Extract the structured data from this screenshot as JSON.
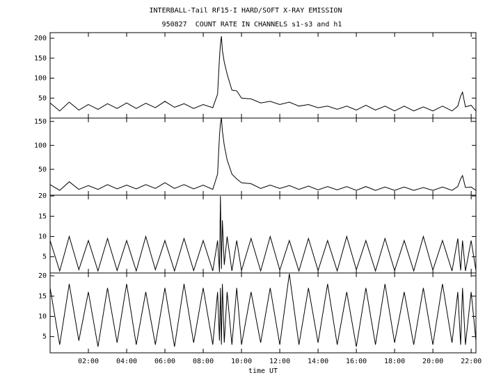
{
  "chart_data": [
    {
      "type": "line",
      "title": "INTERBALL-Tail RF15-I HARD/SOFT X-RAY EMISSION",
      "subtitle": "950827  COUNT RATE IN CHANNELS s1-s3 and h1",
      "color": "#000000",
      "xlim": [
        0,
        22.25
      ],
      "ylim": [
        0,
        214
      ],
      "yticks": [
        50,
        100,
        150,
        200
      ],
      "x": [
        0,
        0.5,
        1,
        1.5,
        2,
        2.5,
        3,
        3.5,
        4,
        4.5,
        5,
        5.5,
        6,
        6.5,
        7,
        7.5,
        8,
        8.5,
        8.75,
        8.85,
        8.9,
        8.95,
        9.0,
        9.1,
        9.25,
        9.5,
        9.75,
        10,
        10.5,
        11,
        11.5,
        12,
        12.5,
        13,
        13.5,
        14,
        14.5,
        15,
        15.5,
        16,
        16.5,
        17,
        17.5,
        18,
        18.5,
        19,
        19.5,
        20,
        20.5,
        21,
        21.3,
        21.45,
        21.55,
        21.7,
        22,
        22.25
      ],
      "values": [
        38,
        18,
        40,
        20,
        34,
        22,
        36,
        24,
        38,
        24,
        37,
        26,
        42,
        27,
        36,
        24,
        34,
        26,
        60,
        150,
        185,
        205,
        170,
        140,
        110,
        70,
        68,
        50,
        48,
        38,
        42,
        34,
        40,
        30,
        34,
        26,
        30,
        22,
        30,
        20,
        32,
        20,
        30,
        18,
        30,
        18,
        28,
        18,
        30,
        18,
        30,
        55,
        65,
        28,
        32,
        18
      ]
    },
    {
      "type": "line",
      "color": "#000000",
      "xlim": [
        0,
        22.25
      ],
      "ylim": [
        -4,
        157
      ],
      "yticks": [
        50,
        100,
        150
      ],
      "x": [
        0,
        0.5,
        1,
        1.5,
        2,
        2.5,
        3,
        3.5,
        4,
        4.5,
        5,
        5.5,
        6,
        6.5,
        7,
        7.5,
        8,
        8.5,
        8.75,
        8.85,
        8.9,
        8.95,
        9.0,
        9.1,
        9.25,
        9.5,
        9.75,
        10,
        10.5,
        11,
        11.5,
        12,
        12.5,
        13,
        13.5,
        14,
        14.5,
        15,
        15.5,
        16,
        16.5,
        17,
        17.5,
        18,
        18.5,
        19,
        19.5,
        20,
        20.5,
        21,
        21.3,
        21.45,
        21.55,
        21.7,
        22,
        22.25
      ],
      "values": [
        18,
        6,
        24,
        8,
        16,
        8,
        18,
        9,
        17,
        9,
        18,
        10,
        22,
        10,
        18,
        9,
        17,
        8,
        40,
        120,
        145,
        158,
        130,
        100,
        70,
        40,
        30,
        22,
        20,
        10,
        17,
        10,
        16,
        8,
        15,
        7,
        14,
        7,
        14,
        6,
        14,
        6,
        13,
        6,
        13,
        6,
        12,
        6,
        13,
        6,
        14,
        30,
        37,
        12,
        13,
        6
      ]
    },
    {
      "type": "line",
      "color": "#000000",
      "xlim": [
        0,
        22.25
      ],
      "ylim": [
        1,
        20.2
      ],
      "yticks": [
        5,
        10,
        15,
        20
      ],
      "x": [
        0,
        0.5,
        1,
        1.5,
        2,
        2.5,
        3,
        3.5,
        4,
        4.5,
        5,
        5.5,
        6,
        6.5,
        7,
        7.5,
        8,
        8.5,
        8.75,
        8.85,
        8.9,
        8.95,
        9.0,
        9.1,
        9.25,
        9.5,
        9.75,
        10,
        10.5,
        11,
        11.5,
        12,
        12.5,
        13,
        13.5,
        14,
        14.5,
        15,
        15.5,
        16,
        16.5,
        17,
        17.5,
        18,
        18.5,
        19,
        19.5,
        20,
        20.5,
        21,
        21.3,
        21.45,
        21.55,
        21.7,
        22,
        22.25
      ],
      "values": [
        9,
        1.5,
        10,
        1.8,
        9,
        1.5,
        9.5,
        1.6,
        9,
        1.5,
        10,
        1.8,
        9,
        1.5,
        9.5,
        1.6,
        9,
        1.5,
        9,
        1.2,
        20,
        2,
        14,
        3,
        10,
        1.5,
        9,
        1.6,
        9.5,
        1.5,
        10,
        1.7,
        9,
        1.5,
        9.5,
        1.6,
        9,
        1.5,
        10,
        1.8,
        9,
        1.5,
        9.5,
        1.6,
        9,
        1.5,
        10,
        1.7,
        9,
        1.5,
        9.5,
        1.6,
        9,
        1.5,
        9,
        1.6
      ]
    },
    {
      "type": "line",
      "color": "#000000",
      "xlim": [
        0,
        22.25
      ],
      "ylim": [
        1,
        20.7
      ],
      "yticks": [
        5,
        10,
        15,
        20
      ],
      "xlabel": "time UT",
      "xticks": [
        {
          "value": 2,
          "label": "02:00"
        },
        {
          "value": 4,
          "label": "04:00"
        },
        {
          "value": 6,
          "label": "06:00"
        },
        {
          "value": 8,
          "label": "08:00"
        },
        {
          "value": 10,
          "label": "10:00"
        },
        {
          "value": 12,
          "label": "12:00"
        },
        {
          "value": 14,
          "label": "14:00"
        },
        {
          "value": 16,
          "label": "16:00"
        },
        {
          "value": 18,
          "label": "18:00"
        },
        {
          "value": 20,
          "label": "20:00"
        },
        {
          "value": 22,
          "label": "22:00"
        }
      ],
      "x": [
        0,
        0.5,
        1,
        1.5,
        2,
        2.5,
        3,
        3.5,
        4,
        4.5,
        5,
        5.5,
        6,
        6.5,
        7,
        7.5,
        8,
        8.5,
        8.75,
        8.85,
        8.9,
        8.95,
        9.0,
        9.1,
        9.25,
        9.5,
        9.75,
        10,
        10.5,
        11,
        11.5,
        12,
        12.5,
        13,
        13.5,
        14,
        14.5,
        15,
        15.5,
        16,
        16.5,
        17,
        17.5,
        18,
        18.5,
        19,
        19.5,
        20,
        20.5,
        21,
        21.3,
        21.45,
        21.55,
        21.7,
        22,
        22.25
      ],
      "values": [
        17,
        3,
        18,
        4,
        16,
        2.5,
        17,
        3.5,
        18,
        3,
        16,
        3,
        17,
        2.5,
        18,
        3.5,
        17,
        3,
        16,
        4,
        17,
        3,
        18,
        3.5,
        16,
        3,
        17,
        3,
        16,
        3.5,
        17,
        3,
        20.5,
        3,
        17,
        3.5,
        18,
        3,
        16,
        2.5,
        17,
        3,
        18,
        3.5,
        16,
        3,
        17,
        3,
        18,
        3.5,
        16,
        3,
        17,
        3,
        16,
        4
      ]
    }
  ]
}
